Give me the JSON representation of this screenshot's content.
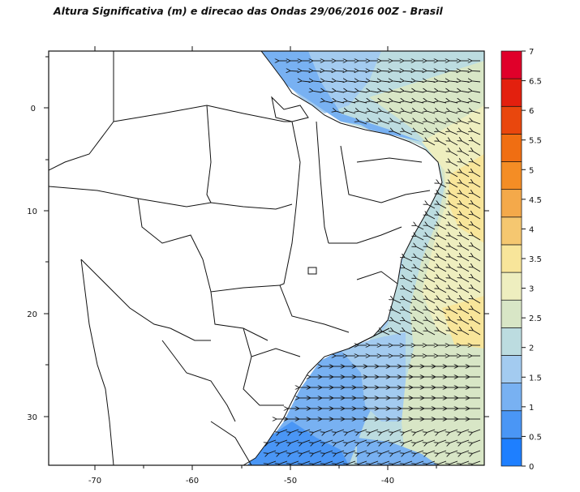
{
  "title": "Altura Significativa (m) e direcao das Ondas 29/06/2016 00Z - Brasil",
  "axes": {
    "x_ticks": [
      "-70",
      "-60",
      "-50",
      "-40"
    ],
    "y_ticks": [
      "0",
      "10",
      "20",
      "30"
    ]
  },
  "colorbar": {
    "labels": [
      "0",
      "0.5",
      "1",
      "1.5",
      "2",
      "2.5",
      "3",
      "3.5",
      "4",
      "4.5",
      "5",
      "5.5",
      "6",
      "6.5",
      "7"
    ],
    "colors": [
      "#1e7fff",
      "#4a96f5",
      "#78b1f2",
      "#a3cbf0",
      "#bcdce0",
      "#d8e6c6",
      "#eeeebf",
      "#f8e59a",
      "#f5c770",
      "#f4a94a",
      "#f48d25",
      "#f06e12",
      "#e9470d",
      "#e3200e",
      "#e0002a"
    ]
  },
  "chart_data": {
    "type": "map",
    "title": "Altura Significativa (m) e direcao das Ondas 29/06/2016 00Z - Brasil",
    "units": "m",
    "x_range": [
      -75,
      -31
    ],
    "y_range": [
      -5,
      35
    ],
    "x_ticks": [
      -70,
      -60,
      -50,
      -40
    ],
    "y_ticks": [
      0,
      10,
      20,
      30
    ],
    "colorbar_range": [
      0,
      7
    ],
    "colorbar_step": 0.5,
    "field": "significant wave height with wave direction arrows",
    "max_value_region": "approximately 3-3.5 m off the coast at 8-12S and 20-24S, 32-36W"
  }
}
